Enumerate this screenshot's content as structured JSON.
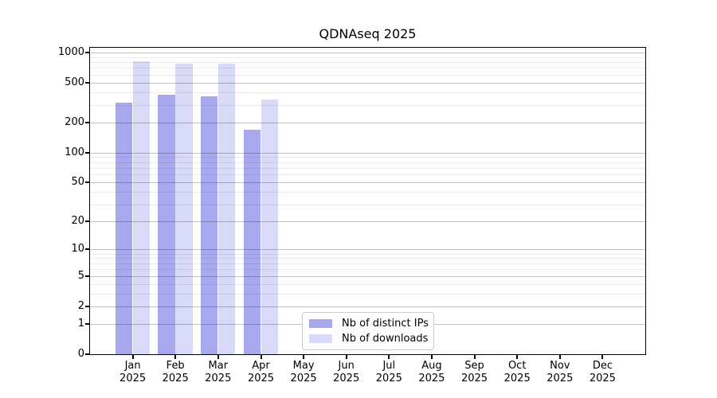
{
  "figure": {
    "background_color": "#ffffff",
    "text_color": "#000000"
  },
  "chart_data": {
    "type": "bar",
    "title": "QDNAseq 2025",
    "categories": [
      "Jan",
      "Feb",
      "Mar",
      "Apr",
      "May",
      "Jun",
      "Jul",
      "Aug",
      "Sep",
      "Oct",
      "Nov",
      "Dec"
    ],
    "year_label": "2025",
    "series": [
      {
        "name": "Nb of distinct IPs",
        "color": "#a8a8ee",
        "values": [
          315,
          378,
          362,
          168,
          null,
          null,
          null,
          null,
          null,
          null,
          null,
          null
        ]
      },
      {
        "name": "Nb of downloads",
        "color": "#d9d9f8",
        "values": [
          810,
          766,
          775,
          338,
          null,
          null,
          null,
          null,
          null,
          null,
          null,
          null
        ]
      }
    ],
    "xlabel": "",
    "ylabel": "",
    "yscale": "log1p",
    "yticks": [
      0,
      1,
      2,
      5,
      10,
      20,
      50,
      100,
      200,
      500,
      1000
    ],
    "ylim": [
      0,
      1060
    ],
    "grid": {
      "orientation": "horizontal",
      "major_color": "#c2c2c2",
      "minor_color": "#ebebeb"
    },
    "legend": {
      "position": "bottom-center-inside",
      "border_color": "#cccccc"
    }
  }
}
